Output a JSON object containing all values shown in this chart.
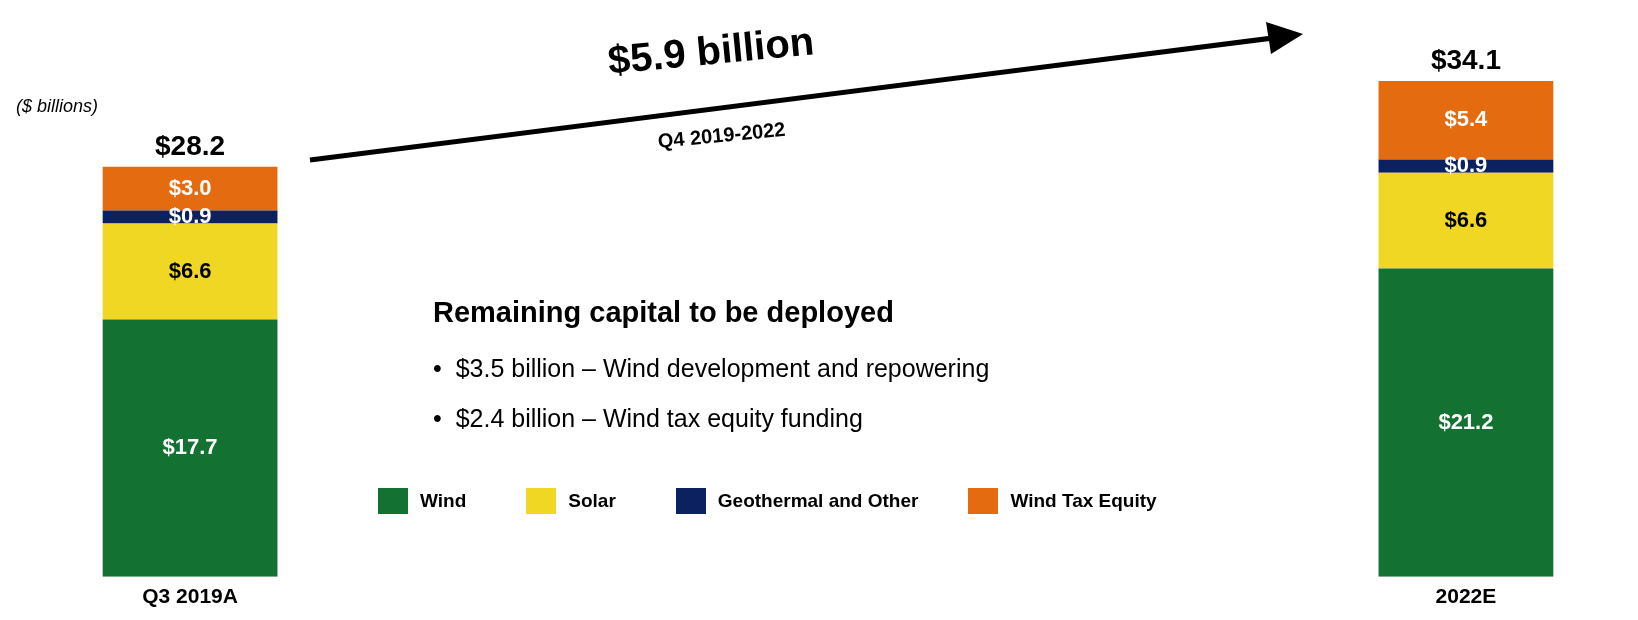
{
  "chart_data": {
    "type": "bar",
    "stacked": true,
    "categories": [
      "Q3 2019A",
      "2022E"
    ],
    "series": [
      {
        "name": "Wind",
        "color": "#137132",
        "values": [
          17.7,
          21.2
        ],
        "value_labels": [
          "$17.7",
          "$21.2"
        ]
      },
      {
        "name": "Solar",
        "color": "#efd723",
        "values": [
          6.6,
          6.6
        ],
        "value_labels": [
          "$6.6",
          "$6.6"
        ]
      },
      {
        "name": "Geothermal and Other",
        "color": "#0c2260",
        "values": [
          0.9,
          0.9
        ],
        "value_labels": [
          "$0.9",
          "$0.9"
        ]
      },
      {
        "name": "Wind Tax Equity",
        "color": "#e56b10",
        "values": [
          3.0,
          5.4
        ],
        "value_labels": [
          "$3.0",
          "$5.4"
        ]
      }
    ],
    "totals": [
      "$28.2",
      "$34.1"
    ],
    "tick_labels": "x",
    "grid": false,
    "legend": "bottom",
    "annotations": [
      "($ billions)",
      "$5.9 billion",
      "Q4 2019-2022",
      "Remaining capital to be deployed",
      "•  $3.5 billion – Wind development and repowering",
      "•  $2.4 billion – Wind tax equity funding"
    ]
  }
}
